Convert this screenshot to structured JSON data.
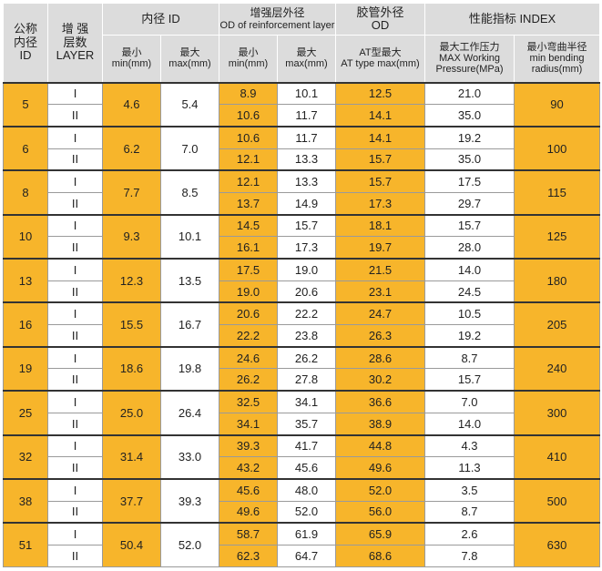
{
  "header": {
    "id": [
      "公称",
      "内径",
      "ID"
    ],
    "layer": [
      "增 强",
      "层数",
      "LAYER"
    ],
    "inner": "内径 ID",
    "od_reinf": [
      "增强层外径",
      "OD of reinforcement layer"
    ],
    "od": [
      "胶管外径",
      "OD"
    ],
    "index": "性能指标 INDEX",
    "sub": {
      "id_min": [
        "最小",
        "min(mm)"
      ],
      "id_max": [
        "最大",
        "max(mm)"
      ],
      "od_min": [
        "最小",
        "min(mm)"
      ],
      "od_max": [
        "最大",
        "max(mm)"
      ],
      "at": [
        "AT型最大",
        "AT type max(mm)"
      ],
      "pressure": [
        "最大工作压力",
        "MAX Working",
        "Pressure(MPa)"
      ],
      "radius": [
        "最小弯曲半径",
        "min bending",
        "radius(mm)"
      ]
    }
  },
  "groups": [
    {
      "id": "5",
      "min": "4.6",
      "max": "5.4",
      "radius": "90",
      "rows": [
        [
          "I",
          "8.9",
          "10.1",
          "12.5",
          "21.0"
        ],
        [
          "II",
          "10.6",
          "11.7",
          "14.1",
          "35.0"
        ]
      ]
    },
    {
      "id": "6",
      "min": "6.2",
      "max": "7.0",
      "radius": "100",
      "rows": [
        [
          "I",
          "10.6",
          "11.7",
          "14.1",
          "19.2"
        ],
        [
          "II",
          "12.1",
          "13.3",
          "15.7",
          "35.0"
        ]
      ]
    },
    {
      "id": "8",
      "min": "7.7",
      "max": "8.5",
      "radius": "115",
      "rows": [
        [
          "I",
          "12.1",
          "13.3",
          "15.7",
          "17.5"
        ],
        [
          "II",
          "13.7",
          "14.9",
          "17.3",
          "29.7"
        ]
      ]
    },
    {
      "id": "10",
      "min": "9.3",
      "max": "10.1",
      "radius": "125",
      "rows": [
        [
          "I",
          "14.5",
          "15.7",
          "18.1",
          "15.7"
        ],
        [
          "II",
          "16.1",
          "17.3",
          "19.7",
          "28.0"
        ]
      ]
    },
    {
      "id": "13",
      "min": "12.3",
      "max": "13.5",
      "radius": "180",
      "rows": [
        [
          "I",
          "17.5",
          "19.0",
          "21.5",
          "14.0"
        ],
        [
          "II",
          "19.0",
          "20.6",
          "23.1",
          "24.5"
        ]
      ]
    },
    {
      "id": "16",
      "min": "15.5",
      "max": "16.7",
      "radius": "205",
      "rows": [
        [
          "I",
          "20.6",
          "22.2",
          "24.7",
          "10.5"
        ],
        [
          "II",
          "22.2",
          "23.8",
          "26.3",
          "19.2"
        ]
      ]
    },
    {
      "id": "19",
      "min": "18.6",
      "max": "19.8",
      "radius": "240",
      "rows": [
        [
          "I",
          "24.6",
          "26.2",
          "28.6",
          "8.7"
        ],
        [
          "II",
          "26.2",
          "27.8",
          "30.2",
          "15.7"
        ]
      ]
    },
    {
      "id": "25",
      "min": "25.0",
      "max": "26.4",
      "radius": "300",
      "rows": [
        [
          "I",
          "32.5",
          "34.1",
          "36.6",
          "7.0"
        ],
        [
          "II",
          "34.1",
          "35.7",
          "38.9",
          "14.0"
        ]
      ]
    },
    {
      "id": "32",
      "min": "31.4",
      "max": "33.0",
      "radius": "410",
      "rows": [
        [
          "I",
          "39.3",
          "41.7",
          "44.8",
          "4.3"
        ],
        [
          "II",
          "43.2",
          "45.6",
          "49.6",
          "11.3"
        ]
      ]
    },
    {
      "id": "38",
      "min": "37.7",
      "max": "39.3",
      "radius": "500",
      "rows": [
        [
          "I",
          "45.6",
          "48.0",
          "52.0",
          "3.5"
        ],
        [
          "II",
          "49.6",
          "52.0",
          "56.0",
          "8.7"
        ]
      ]
    },
    {
      "id": "51",
      "min": "50.4",
      "max": "52.0",
      "radius": "630",
      "rows": [
        [
          "I",
          "58.7",
          "61.9",
          "65.9",
          "2.6"
        ],
        [
          "II",
          "62.3",
          "64.7",
          "68.6",
          "7.8"
        ]
      ]
    }
  ]
}
